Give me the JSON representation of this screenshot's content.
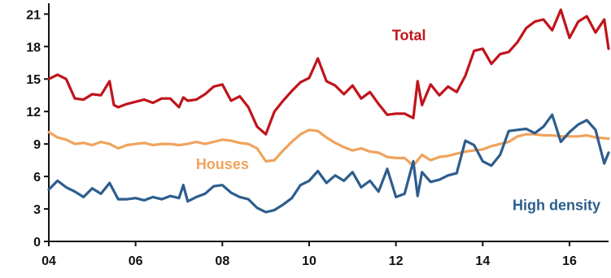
{
  "chart_data": {
    "type": "line",
    "title": "",
    "xlabel": "",
    "ylabel": "",
    "xlim": [
      2004,
      2016.9
    ],
    "ylim": [
      0,
      22
    ],
    "grid": false,
    "x_ticks": [
      2004,
      2006,
      2008,
      2010,
      2012,
      2014,
      2016
    ],
    "x_tick_labels": [
      "04",
      "06",
      "08",
      "10",
      "12",
      "14",
      "16"
    ],
    "y_ticks": [
      0,
      3,
      6,
      9,
      12,
      15,
      18,
      21
    ],
    "y_tick_labels": [
      "0",
      "3",
      "6",
      "9",
      "12",
      "15",
      "18",
      "21"
    ],
    "series": [
      {
        "name": "Total",
        "color": "#c0141b",
        "x": [
          2004.0,
          2004.2,
          2004.4,
          2004.6,
          2004.8,
          2005.0,
          2005.2,
          2005.4,
          2005.5,
          2005.6,
          2005.8,
          2006.0,
          2006.2,
          2006.4,
          2006.6,
          2006.8,
          2007.0,
          2007.1,
          2007.2,
          2007.4,
          2007.6,
          2007.8,
          2008.0,
          2008.2,
          2008.4,
          2008.6,
          2008.8,
          2009.0,
          2009.2,
          2009.4,
          2009.6,
          2009.8,
          2010.0,
          2010.2,
          2010.4,
          2010.6,
          2010.8,
          2011.0,
          2011.2,
          2011.4,
          2011.6,
          2011.8,
          2012.0,
          2012.2,
          2012.4,
          2012.5,
          2012.6,
          2012.8,
          2013.0,
          2013.2,
          2013.4,
          2013.6,
          2013.8,
          2014.0,
          2014.2,
          2014.4,
          2014.6,
          2014.8,
          2015.0,
          2015.2,
          2015.4,
          2015.6,
          2015.8,
          2016.0,
          2016.2,
          2016.4,
          2016.6,
          2016.8,
          2016.9
        ],
        "values": [
          15.0,
          15.4,
          15.0,
          13.2,
          13.1,
          13.6,
          13.5,
          14.8,
          12.6,
          12.4,
          12.7,
          12.9,
          13.1,
          12.8,
          13.2,
          13.2,
          12.4,
          13.3,
          13.0,
          13.1,
          13.6,
          14.3,
          14.5,
          13.0,
          13.4,
          12.4,
          10.6,
          9.9,
          12.0,
          13.0,
          13.9,
          14.7,
          15.1,
          16.9,
          14.8,
          14.4,
          13.6,
          14.4,
          13.2,
          13.8,
          12.7,
          11.7,
          11.8,
          11.8,
          11.4,
          14.8,
          12.6,
          14.5,
          13.5,
          14.3,
          13.8,
          15.3,
          17.6,
          17.8,
          16.4,
          17.3,
          17.5,
          18.4,
          19.7,
          20.3,
          20.5,
          19.5,
          21.4,
          18.8,
          20.3,
          20.8,
          19.3,
          20.5,
          17.8
        ]
      },
      {
        "name": "Houses",
        "color": "#f0a35c",
        "x": [
          2004.0,
          2004.2,
          2004.4,
          2004.6,
          2004.8,
          2005.0,
          2005.2,
          2005.4,
          2005.6,
          2005.8,
          2006.0,
          2006.2,
          2006.4,
          2006.6,
          2006.8,
          2007.0,
          2007.2,
          2007.4,
          2007.6,
          2007.8,
          2008.0,
          2008.2,
          2008.4,
          2008.6,
          2008.8,
          2009.0,
          2009.2,
          2009.4,
          2009.6,
          2009.8,
          2010.0,
          2010.2,
          2010.4,
          2010.6,
          2010.8,
          2011.0,
          2011.2,
          2011.4,
          2011.6,
          2011.8,
          2012.0,
          2012.2,
          2012.4,
          2012.6,
          2012.8,
          2013.0,
          2013.2,
          2013.4,
          2013.6,
          2013.8,
          2014.0,
          2014.2,
          2014.4,
          2014.6,
          2014.8,
          2015.0,
          2015.2,
          2015.4,
          2015.6,
          2015.8,
          2016.0,
          2016.2,
          2016.4,
          2016.6,
          2016.9
        ],
        "values": [
          10.1,
          9.6,
          9.4,
          9.0,
          9.1,
          8.9,
          9.2,
          9.0,
          8.6,
          8.9,
          9.0,
          9.1,
          8.9,
          9.0,
          9.0,
          8.9,
          9.0,
          9.2,
          9.0,
          9.2,
          9.4,
          9.3,
          9.1,
          9.0,
          8.6,
          7.4,
          7.5,
          8.4,
          9.2,
          9.9,
          10.3,
          10.2,
          9.6,
          9.1,
          8.7,
          8.4,
          8.6,
          8.3,
          8.2,
          7.8,
          7.7,
          7.7,
          7.0,
          8.0,
          7.5,
          7.8,
          7.9,
          8.1,
          8.3,
          8.4,
          8.5,
          8.8,
          9.0,
          9.2,
          9.7,
          9.9,
          9.9,
          9.8,
          9.8,
          9.7,
          9.7,
          9.7,
          9.8,
          9.6,
          9.5
        ]
      },
      {
        "name": "High density",
        "color": "#2d5d8e",
        "x": [
          2004.0,
          2004.2,
          2004.4,
          2004.6,
          2004.8,
          2005.0,
          2005.2,
          2005.4,
          2005.6,
          2005.8,
          2006.0,
          2006.2,
          2006.4,
          2006.6,
          2006.8,
          2007.0,
          2007.1,
          2007.2,
          2007.4,
          2007.6,
          2007.8,
          2008.0,
          2008.2,
          2008.4,
          2008.6,
          2008.8,
          2009.0,
          2009.2,
          2009.4,
          2009.6,
          2009.8,
          2010.0,
          2010.2,
          2010.4,
          2010.6,
          2010.8,
          2011.0,
          2011.2,
          2011.4,
          2011.6,
          2011.8,
          2012.0,
          2012.2,
          2012.4,
          2012.5,
          2012.6,
          2012.8,
          2013.0,
          2013.2,
          2013.4,
          2013.6,
          2013.8,
          2014.0,
          2014.2,
          2014.4,
          2014.6,
          2014.8,
          2015.0,
          2015.2,
          2015.4,
          2015.6,
          2015.8,
          2016.0,
          2016.2,
          2016.4,
          2016.6,
          2016.8,
          2016.9
        ],
        "values": [
          4.8,
          5.6,
          5.0,
          4.6,
          4.1,
          4.9,
          4.4,
          5.4,
          3.9,
          3.9,
          4.0,
          3.8,
          4.1,
          3.9,
          4.2,
          4.0,
          5.2,
          3.7,
          4.1,
          4.4,
          5.1,
          5.2,
          4.5,
          4.1,
          3.9,
          3.1,
          2.7,
          2.9,
          3.4,
          4.0,
          5.2,
          5.6,
          6.5,
          5.4,
          6.1,
          5.6,
          6.4,
          5.0,
          5.6,
          4.6,
          6.7,
          4.1,
          4.4,
          7.4,
          4.2,
          6.4,
          5.5,
          5.7,
          6.1,
          6.3,
          9.3,
          8.9,
          7.4,
          7.0,
          8.0,
          10.2,
          10.3,
          10.4,
          10.0,
          10.6,
          11.7,
          9.2,
          10.1,
          10.8,
          11.2,
          10.3,
          7.2,
          8.2
        ]
      }
    ],
    "annotations": [
      {
        "text": "Total",
        "x": 2012.3,
        "y": 18.6,
        "color": "#c0141b"
      },
      {
        "text": "Houses",
        "x": 2008.0,
        "y": 6.7,
        "color": "#f0a35c"
      },
      {
        "text": "High density",
        "x": 2015.7,
        "y": 2.9,
        "color": "#2d5d8e"
      }
    ]
  }
}
